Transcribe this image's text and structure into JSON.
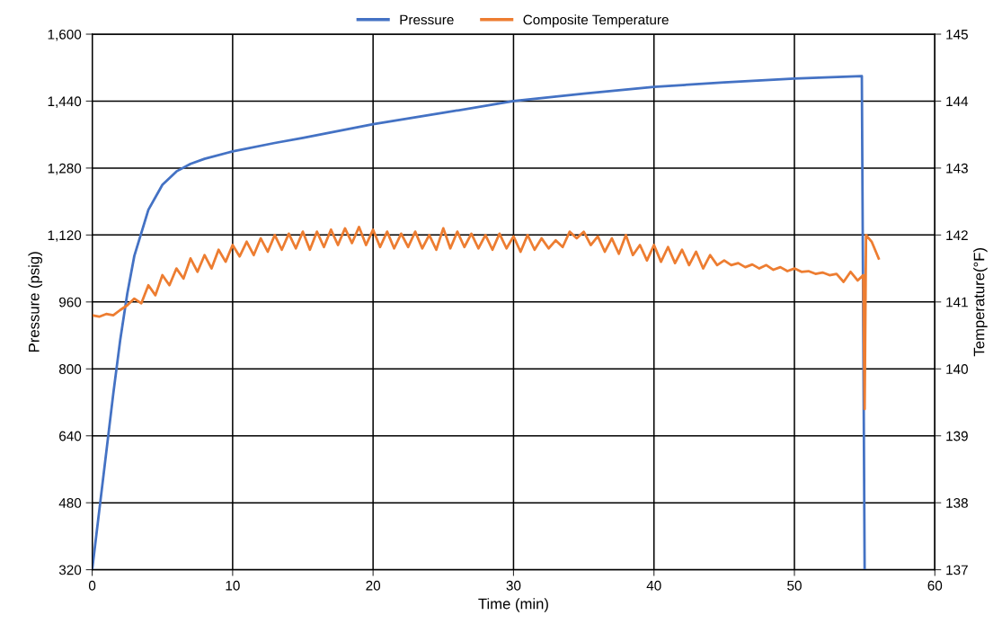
{
  "chart_data": {
    "type": "line",
    "xlabel": "Time (min)",
    "ylabel": "Pressure (psig)",
    "y2label": "Temperature(°F)",
    "xlim": [
      0,
      60
    ],
    "xticks": [
      0,
      10,
      20,
      30,
      40,
      50,
      60
    ],
    "ylim": [
      320,
      1600
    ],
    "yticks": [
      {
        "value": 320,
        "label": "320"
      },
      {
        "value": 480,
        "label": "480"
      },
      {
        "value": 640,
        "label": "640"
      },
      {
        "value": 800,
        "label": "800"
      },
      {
        "value": 960,
        "label": "960"
      },
      {
        "value": 1120,
        "label": "1,120"
      },
      {
        "value": 1280,
        "label": "1,280"
      },
      {
        "value": 1440,
        "label": "1,440"
      },
      {
        "value": 1600,
        "label": "1,600"
      }
    ],
    "y2lim": [
      137,
      145
    ],
    "y2ticks": [
      137,
      138,
      139,
      140,
      141,
      142,
      143,
      144,
      145
    ],
    "grid": true,
    "legend": "top",
    "line_style": "solid",
    "marker": "none",
    "series": [
      {
        "name": "Pressure",
        "color": "#4472c4",
        "x": [
          0,
          0.5,
          1,
          1.5,
          2,
          2.5,
          3,
          4,
          5,
          6,
          7,
          8,
          10,
          13,
          15,
          20,
          25,
          30,
          35,
          40,
          45,
          50,
          54.8,
          55
        ],
        "values": [
          320,
          460,
          600,
          740,
          870,
          980,
          1070,
          1180,
          1240,
          1272,
          1290,
          1302,
          1320,
          1340,
          1352,
          1385,
          1412,
          1440,
          1458,
          1474,
          1485,
          1494,
          1500,
          320
        ]
      },
      {
        "name": "Composite Temperature",
        "color": "#ed7d31",
        "axis": "y2",
        "x": [
          0,
          0.5,
          1,
          1.5,
          2,
          2.5,
          3,
          3.5,
          4,
          4.5,
          5,
          5.5,
          6,
          6.5,
          7,
          7.5,
          8,
          8.5,
          9,
          9.5,
          10,
          10.5,
          11,
          11.5,
          12,
          12.5,
          13,
          13.5,
          14,
          14.5,
          15,
          15.5,
          16,
          16.5,
          17,
          17.5,
          18,
          18.5,
          19,
          19.5,
          20,
          20.5,
          21,
          21.5,
          22,
          22.5,
          23,
          23.5,
          24,
          24.5,
          25,
          25.5,
          26,
          26.5,
          27,
          27.5,
          28,
          28.5,
          29,
          29.5,
          30,
          30.5,
          31,
          31.5,
          32,
          32.5,
          33,
          33.5,
          34,
          34.5,
          35,
          35.5,
          36,
          36.5,
          37,
          37.5,
          38,
          38.5,
          39,
          39.5,
          40,
          40.5,
          41,
          41.5,
          42,
          42.5,
          43,
          43.5,
          44,
          44.5,
          45,
          45.5,
          46,
          46.5,
          47,
          47.5,
          48,
          48.5,
          49,
          49.5,
          50,
          50.5,
          51,
          51.5,
          52,
          52.5,
          53,
          53.5,
          54,
          54.5,
          54.9,
          55.0,
          55.1,
          55.5,
          56
        ],
        "values": [
          140.8,
          140.78,
          140.82,
          140.8,
          140.88,
          140.95,
          141.05,
          140.98,
          141.25,
          141.1,
          141.4,
          141.25,
          141.5,
          141.35,
          141.65,
          141.45,
          141.7,
          141.5,
          141.78,
          141.6,
          141.85,
          141.68,
          141.9,
          141.7,
          141.95,
          141.75,
          142.0,
          141.78,
          142.02,
          141.8,
          142.05,
          141.78,
          142.05,
          141.82,
          142.08,
          141.85,
          142.1,
          141.88,
          142.12,
          141.85,
          142.08,
          141.82,
          142.05,
          141.8,
          142.02,
          141.82,
          142.05,
          141.8,
          142.0,
          141.78,
          142.1,
          141.8,
          142.05,
          141.82,
          142.02,
          141.8,
          142.0,
          141.78,
          142.02,
          141.8,
          141.98,
          141.75,
          142.0,
          141.78,
          141.95,
          141.8,
          141.92,
          141.82,
          142.05,
          141.95,
          142.05,
          141.85,
          141.98,
          141.75,
          141.95,
          141.72,
          142.0,
          141.7,
          141.85,
          141.62,
          141.85,
          141.6,
          141.82,
          141.58,
          141.78,
          141.55,
          141.75,
          141.5,
          141.7,
          141.55,
          141.62,
          141.55,
          141.58,
          141.52,
          141.56,
          141.5,
          141.55,
          141.48,
          141.52,
          141.46,
          141.5,
          141.45,
          141.46,
          141.42,
          141.44,
          141.4,
          141.42,
          141.3,
          141.45,
          141.32,
          141.4,
          139.4,
          142.0,
          141.9,
          141.65
        ]
      }
    ]
  }
}
